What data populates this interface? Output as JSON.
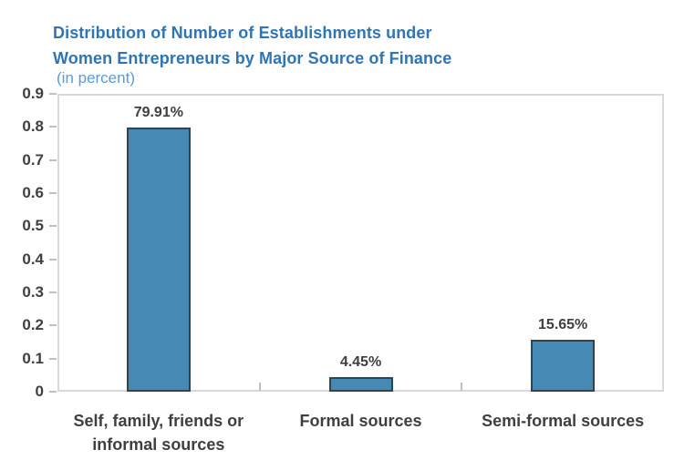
{
  "chart_data": {
    "type": "bar",
    "title": "Distribution of Number of Establishments under Women Entrepreneurs by Major Source of Finance",
    "title_lines": [
      "Distribution of Number of Establishments under",
      "Women Entrepreneurs by Major Source of Finance"
    ],
    "subtitle": "(in percent)",
    "categories": [
      "Self, family, friends or\ninformal sources",
      "Formal sources",
      "Semi-formal sources"
    ],
    "values": [
      0.7991,
      0.0445,
      0.1565
    ],
    "data_labels": [
      "79.91%",
      "4.45%",
      "15.65%"
    ],
    "xlabel": "",
    "ylabel": "",
    "ylim": [
      0,
      0.9
    ],
    "ytick_step": 0.1,
    "ytick_labels": [
      "0",
      "0.1",
      "0.2",
      "0.3",
      "0.4",
      "0.5",
      "0.6",
      "0.7",
      "0.8",
      "0.9"
    ],
    "grid": "off",
    "legend": "none",
    "colors": {
      "bar_fill": "#4689B4",
      "bar_border": "#2E4450",
      "title": "#2E75B6",
      "subtitle": "#5B9BD5",
      "axis_text": "#3F3F3F",
      "axis_line": "#C0C0C0",
      "plot_border": "#D9D9D9"
    }
  }
}
